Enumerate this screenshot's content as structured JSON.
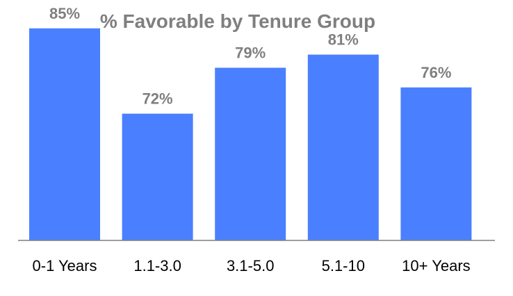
{
  "chart_data": {
    "type": "bar",
    "title": "% Favorable by Tenure Group",
    "categories": [
      "0-1 Years",
      "1.1-3.0",
      "3.1-5.0",
      "5.1-10",
      "10+ Years"
    ],
    "values": [
      85,
      72,
      79,
      81,
      76
    ],
    "value_labels": [
      "85%",
      "72%",
      "79%",
      "81%",
      "76%"
    ],
    "xlabel": "",
    "ylabel": "",
    "ylim": [
      60,
      90
    ],
    "grid": false,
    "legend": "none",
    "colors": {
      "bar": "#4a80ff",
      "axis": "#7f7f7f",
      "title": "#7f7f7f",
      "data_label": "#7f7f7f",
      "tick_label": "#000000"
    }
  }
}
